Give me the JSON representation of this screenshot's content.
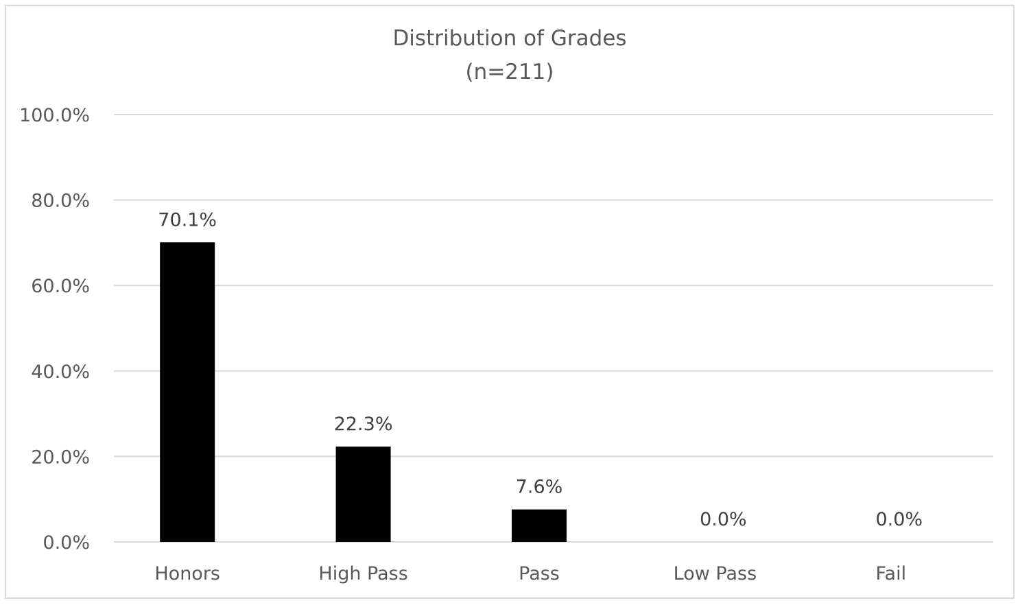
{
  "chart_data": {
    "type": "bar",
    "title": "Distribution of Grades",
    "subtitle": "(n=211)",
    "categories": [
      "Honors",
      "High Pass",
      "Pass",
      "Low Pass",
      "Fail"
    ],
    "values": [
      70.1,
      22.3,
      7.6,
      0.0,
      0.0
    ],
    "data_labels": [
      "70.1%",
      "22.3%",
      "7.6%",
      "0.0%",
      "0.0%"
    ],
    "yticks": [
      0,
      20,
      40,
      60,
      80,
      100
    ],
    "ytick_labels": [
      "0.0%",
      "20.0%",
      "40.0%",
      "60.0%",
      "80.0%",
      "100.0%"
    ],
    "ylim": [
      0,
      100
    ],
    "xlabel": "",
    "ylabel": "",
    "grid": true,
    "legend": "none",
    "bar_color": "#000000",
    "gridline_color": "#d9d9d9",
    "text_color": "#595959"
  }
}
